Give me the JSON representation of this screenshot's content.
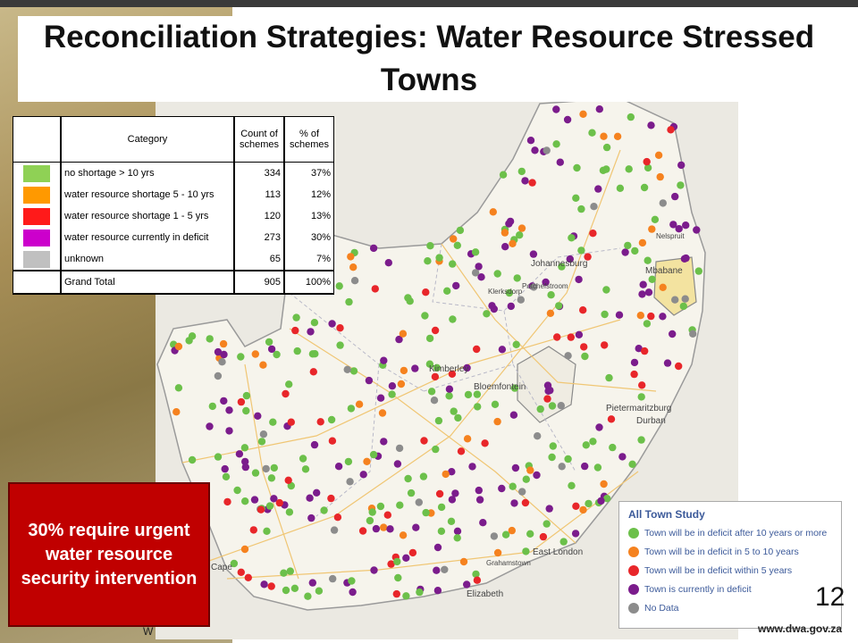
{
  "title": "Reconciliation Strategies: Water Resource Stressed Towns",
  "table": {
    "header": {
      "category": "Category",
      "count": "Count of schemes",
      "percent": "% of schemes"
    },
    "rows": [
      {
        "color": "#8fd155",
        "category": "no shortage > 10 yrs",
        "count": "334",
        "percent": "37%"
      },
      {
        "color": "#ff9900",
        "category": "water resource shortage 5 - 10 yrs",
        "count": "113",
        "percent": "12%"
      },
      {
        "color": "#ff1a1a",
        "category": "water resource shortage 1 - 5 yrs",
        "count": "120",
        "percent": "13%"
      },
      {
        "color": "#cc00cc",
        "category": "water resource currently in deficit",
        "count": "273",
        "percent": "30%"
      },
      {
        "color": "#c0c0c0",
        "category": "unknown",
        "count": "65",
        "percent": "7%"
      }
    ],
    "total": {
      "category": "Grand Total",
      "count": "905",
      "percent": "100%"
    }
  },
  "callout": "30% require urgent water resource security intervention",
  "legend": {
    "title": "All Town Study",
    "items": [
      {
        "color": "#6cc04a",
        "label": "Town will be in deficit after 10 years or more"
      },
      {
        "color": "#f5821f",
        "label": "Town will be in deficit in 5 to 10 years"
      },
      {
        "color": "#e8262a",
        "label": "Town will be in deficit within 5 years"
      },
      {
        "color": "#7b1c8c",
        "label": "Town is currently in deficit"
      },
      {
        "color": "#8c8c8c",
        "label": "No Data"
      }
    ]
  },
  "map_labels": {
    "johannesburg": "Johannesburg",
    "kimberley": "Kimberley",
    "bloemfontein": "Bloemfontein",
    "pietermaritzburg": "Pietermaritzburg",
    "durban": "Durban",
    "east_london": "East London",
    "cape": "Cape",
    "port_elizabeth": "Elizabeth",
    "mbabane": "Mbabane",
    "grahamstown": "Grahamstown",
    "potchefstroom": "Potchefstroom",
    "klerksdorp": "Klerksdorp",
    "nelspruit": "Nelspruit"
  },
  "page_number": "12",
  "footer_url": "www.dwa.gov.za",
  "footer_left": "W"
}
